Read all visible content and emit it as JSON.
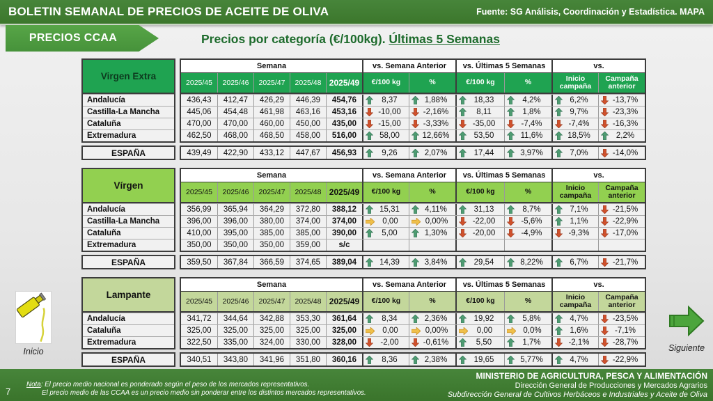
{
  "header": {
    "title": "BOLETIN SEMANAL DE PRECIOS DE ACEITE DE OLIVA",
    "source": "Fuente: SG Análisis, Coordinación y Estadística. MAPA"
  },
  "banner": {
    "label": "PRECIOS CCAA"
  },
  "subtitle": {
    "prefix": "Precios por categoría (€/100kg). ",
    "underlined": "Últimas 5 Semanas"
  },
  "columns": {
    "semana": "Semana",
    "vs_semana_anterior": "vs. Semana Anterior",
    "vs_ultimas_5": "vs. Últimas 5 Semanas",
    "vs": "vs.",
    "weeks": [
      "2025/45",
      "2025/46",
      "2025/47",
      "2025/48",
      "2025/49"
    ],
    "eur_kg": "€/100 kg",
    "pct": "%",
    "inicio_campana": [
      "Inicio",
      "campaña"
    ],
    "campana_anterior": [
      "Campaña",
      "anterior"
    ]
  },
  "colors": {
    "bar_green": "#3c772c",
    "banner_green": "#46923a",
    "extra_green": "#1fa351",
    "virgen_green": "#92d050",
    "lampante_green": "#c3d79b",
    "arrow_up": "#4e9c72",
    "arrow_down": "#d0512c",
    "arrow_flat": "#efc04a"
  },
  "tables": [
    {
      "category": "Virgen Extra",
      "theme": "extra",
      "rows": [
        {
          "region": "Andalucía",
          "weeks": [
            "436,43",
            "412,47",
            "426,29",
            "446,39",
            "454,76"
          ],
          "cells": [
            {
              "d": "up",
              "v": "8,37"
            },
            {
              "d": "up",
              "v": "1,88%"
            },
            {
              "d": "up",
              "v": "18,33"
            },
            {
              "d": "up",
              "v": "4,2%"
            },
            {
              "d": "up",
              "v": "6,2%"
            },
            {
              "d": "down",
              "v": "-13,7%"
            }
          ]
        },
        {
          "region": "Castilla-La Mancha",
          "weeks": [
            "445,06",
            "454,48",
            "461,98",
            "463,16",
            "453,16"
          ],
          "cells": [
            {
              "d": "down",
              "v": "-10,00"
            },
            {
              "d": "down",
              "v": "-2,16%"
            },
            {
              "d": "up",
              "v": "8,11"
            },
            {
              "d": "up",
              "v": "1,8%"
            },
            {
              "d": "up",
              "v": "9,7%"
            },
            {
              "d": "down",
              "v": "-23,3%"
            }
          ]
        },
        {
          "region": "Cataluña",
          "weeks": [
            "470,00",
            "470,00",
            "460,00",
            "450,00",
            "435,00"
          ],
          "cells": [
            {
              "d": "down",
              "v": "-15,00"
            },
            {
              "d": "down",
              "v": "-3,33%"
            },
            {
              "d": "down",
              "v": "-35,00"
            },
            {
              "d": "down",
              "v": "-7,4%"
            },
            {
              "d": "down",
              "v": "-7,4%"
            },
            {
              "d": "down",
              "v": "-16,3%"
            }
          ]
        },
        {
          "region": "Extremadura",
          "weeks": [
            "462,50",
            "468,00",
            "468,50",
            "458,00",
            "516,00"
          ],
          "cells": [
            {
              "d": "up",
              "v": "58,00"
            },
            {
              "d": "up",
              "v": "12,66%"
            },
            {
              "d": "up",
              "v": "53,50"
            },
            {
              "d": "up",
              "v": "11,6%"
            },
            {
              "d": "up",
              "v": "18,5%"
            },
            {
              "d": "up",
              "v": "2,2%"
            }
          ]
        }
      ],
      "total": {
        "region": "ESPAÑA",
        "weeks": [
          "439,49",
          "422,90",
          "433,12",
          "447,67",
          "456,93"
        ],
        "cells": [
          {
            "d": "up",
            "v": "9,26"
          },
          {
            "d": "up",
            "v": "2,07%"
          },
          {
            "d": "up",
            "v": "17,44"
          },
          {
            "d": "up",
            "v": "3,97%"
          },
          {
            "d": "up",
            "v": "7,0%"
          },
          {
            "d": "down",
            "v": "-14,0%"
          }
        ]
      }
    },
    {
      "category": "Vírgen",
      "theme": "virgen",
      "rows": [
        {
          "region": "Andalucía",
          "weeks": [
            "356,99",
            "365,94",
            "364,29",
            "372,80",
            "388,12"
          ],
          "cells": [
            {
              "d": "up",
              "v": "15,31"
            },
            {
              "d": "up",
              "v": "4,11%"
            },
            {
              "d": "up",
              "v": "31,13"
            },
            {
              "d": "up",
              "v": "8,7%"
            },
            {
              "d": "up",
              "v": "7,1%"
            },
            {
              "d": "down",
              "v": "-21,5%"
            }
          ]
        },
        {
          "region": "Castilla-La Mancha",
          "weeks": [
            "396,00",
            "396,00",
            "380,00",
            "374,00",
            "374,00"
          ],
          "cells": [
            {
              "d": "flat",
              "v": "0,00"
            },
            {
              "d": "flat",
              "v": "0,00%"
            },
            {
              "d": "down",
              "v": "-22,00"
            },
            {
              "d": "down",
              "v": "-5,6%"
            },
            {
              "d": "up",
              "v": "1,1%"
            },
            {
              "d": "down",
              "v": "-22,9%"
            }
          ]
        },
        {
          "region": "Cataluña",
          "weeks": [
            "410,00",
            "395,00",
            "385,00",
            "385,00",
            "390,00"
          ],
          "cells": [
            {
              "d": "up",
              "v": "5,00"
            },
            {
              "d": "up",
              "v": "1,30%"
            },
            {
              "d": "down",
              "v": "-20,00"
            },
            {
              "d": "down",
              "v": "-4,9%"
            },
            {
              "d": "down",
              "v": "-9,3%"
            },
            {
              "d": "down",
              "v": "-17,0%"
            }
          ]
        },
        {
          "region": "Extremadura",
          "weeks": [
            "350,00",
            "350,00",
            "350,00",
            "359,00",
            "s/c"
          ],
          "cells": [
            null,
            null,
            null,
            null,
            null,
            null
          ]
        }
      ],
      "total": {
        "region": "ESPAÑA",
        "weeks": [
          "359,50",
          "367,84",
          "366,59",
          "374,65",
          "389,04"
        ],
        "cells": [
          {
            "d": "up",
            "v": "14,39"
          },
          {
            "d": "up",
            "v": "3,84%"
          },
          {
            "d": "up",
            "v": "29,54"
          },
          {
            "d": "up",
            "v": "8,22%"
          },
          {
            "d": "up",
            "v": "6,7%"
          },
          {
            "d": "down",
            "v": "-21,7%"
          }
        ]
      }
    },
    {
      "category": "Lampante",
      "theme": "lampante",
      "rows": [
        {
          "region": "Andalucía",
          "weeks": [
            "341,72",
            "344,64",
            "342,88",
            "353,30",
            "361,64"
          ],
          "cells": [
            {
              "d": "up",
              "v": "8,34"
            },
            {
              "d": "up",
              "v": "2,36%"
            },
            {
              "d": "up",
              "v": "19,92"
            },
            {
              "d": "up",
              "v": "5,8%"
            },
            {
              "d": "up",
              "v": "4,7%"
            },
            {
              "d": "down",
              "v": "-23,5%"
            }
          ]
        },
        {
          "region": "Cataluña",
          "weeks": [
            "325,00",
            "325,00",
            "325,00",
            "325,00",
            "325,00"
          ],
          "cells": [
            {
              "d": "flat",
              "v": "0,00"
            },
            {
              "d": "flat",
              "v": "0,00%"
            },
            {
              "d": "flat",
              "v": "0,00"
            },
            {
              "d": "flat",
              "v": "0,0%"
            },
            {
              "d": "up",
              "v": "1,6%"
            },
            {
              "d": "down",
              "v": "-7,1%"
            }
          ]
        },
        {
          "region": "Extremadura",
          "weeks": [
            "322,50",
            "335,00",
            "324,00",
            "330,00",
            "328,00"
          ],
          "cells": [
            {
              "d": "down",
              "v": "-2,00"
            },
            {
              "d": "down",
              "v": "-0,61%"
            },
            {
              "d": "up",
              "v": "5,50"
            },
            {
              "d": "up",
              "v": "1,7%"
            },
            {
              "d": "down",
              "v": "-2,1%"
            },
            {
              "d": "down",
              "v": "-28,7%"
            }
          ]
        }
      ],
      "total": {
        "region": "ESPAÑA",
        "weeks": [
          "340,51",
          "343,80",
          "341,96",
          "351,80",
          "360,16"
        ],
        "cells": [
          {
            "d": "up",
            "v": "8,36"
          },
          {
            "d": "up",
            "v": "2,38%"
          },
          {
            "d": "up",
            "v": "19,65"
          },
          {
            "d": "up",
            "v": "5,77%"
          },
          {
            "d": "up",
            "v": "4,7%"
          },
          {
            "d": "down",
            "v": "-22,9%"
          }
        ]
      }
    }
  ],
  "nav": {
    "inicio": "Inicio",
    "siguiente": "Siguiente"
  },
  "footer": {
    "page": "7",
    "note_label": "Nota",
    "note_line1": ": El precio medio nacional es ponderado según el peso de los mercados representativos.",
    "note_line2": "El precio medio de las CCAA es un precio medio sin ponderar entre los distintos mercados representativos.",
    "ministry": "MINISTERIO DE AGRICULTURA, PESCA Y ALIMENTACIÓN",
    "direction": "Dirección General de Producciones y Mercados Agrarios",
    "subdirection": "Subdirección General de Cultivos Herbáceos e Industriales y Aceite de Oliva"
  }
}
